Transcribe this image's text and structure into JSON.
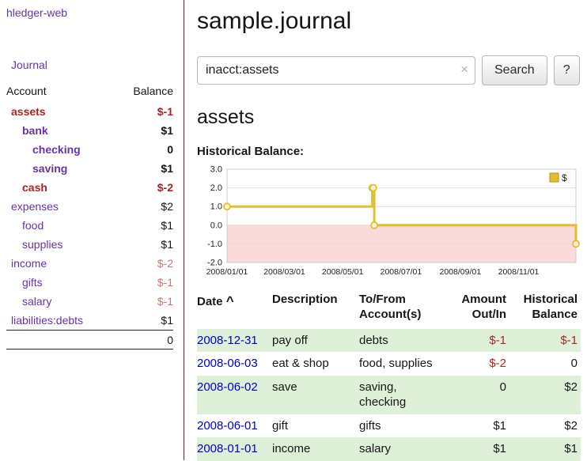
{
  "app": {
    "brand": "hledger-web",
    "nav_journal": "Journal"
  },
  "sidebar": {
    "headers": {
      "account": "Account",
      "balance": "Balance"
    },
    "accounts": [
      {
        "name": "assets",
        "balance": "$-1"
      },
      {
        "name": "bank",
        "balance": "$1"
      },
      {
        "name": "checking",
        "balance": "0"
      },
      {
        "name": "saving",
        "balance": "$1"
      },
      {
        "name": "cash",
        "balance": "$-2"
      },
      {
        "name": "expenses",
        "balance": "$2"
      },
      {
        "name": "food",
        "balance": "$1"
      },
      {
        "name": "supplies",
        "balance": "$1"
      },
      {
        "name": "income",
        "balance": "$-2"
      },
      {
        "name": "gifts",
        "balance": "$-1"
      },
      {
        "name": "salary",
        "balance": "$-1"
      },
      {
        "name": "liabilities:debts",
        "balance": "$1"
      }
    ],
    "total": "0"
  },
  "main": {
    "title": "sample.journal",
    "search": {
      "value": "inacct:assets",
      "clear_icon": "×",
      "button": "Search",
      "help": "?"
    },
    "account_title": "assets",
    "chart_title": "Historical Balance:",
    "chart_data": {
      "type": "line",
      "step": true,
      "title": "Historical Balance:",
      "x_range": [
        "2008-01-01",
        "2008-12-31"
      ],
      "ylim": [
        -2,
        3
      ],
      "yticks": [
        3,
        2,
        1,
        0,
        -1,
        -2
      ],
      "xticks": [
        "2008/01/01",
        "2008/03/01",
        "2008/05/01",
        "2008/07/01",
        "2008/09/01",
        "2008/11/01"
      ],
      "series": [
        {
          "name": "$",
          "points": [
            [
              "2008-01-01",
              1
            ],
            [
              "2008-06-01",
              2
            ],
            [
              "2008-06-02",
              2
            ],
            [
              "2008-06-03",
              0
            ],
            [
              "2008-12-31",
              -1
            ]
          ]
        }
      ],
      "line_color": "#e3bd2d",
      "marker_fill": "#fdf6dd",
      "negative_fill": "#fbdada",
      "grid": true,
      "legend_position": "top-right"
    },
    "register": {
      "headers": {
        "date": "Date",
        "sort_icon": "^",
        "description": "Description",
        "accounts": "To/From Account(s)",
        "amount": "Amount Out/In",
        "balance": "Historical Balance"
      },
      "rows": [
        {
          "date": "2008-12-31",
          "description": "pay off",
          "accounts": "debts",
          "amount": "$-1",
          "balance": "$-1"
        },
        {
          "date": "2008-06-03",
          "description": "eat & shop",
          "accounts": "food, supplies",
          "amount": "$-2",
          "balance": "0"
        },
        {
          "date": "2008-06-02",
          "description": "save",
          "accounts": "saving, checking",
          "amount": "0",
          "balance": "$2"
        },
        {
          "date": "2008-06-01",
          "description": "gift",
          "accounts": "gifts",
          "amount": "$1",
          "balance": "$2"
        },
        {
          "date": "2008-01-01",
          "description": "income",
          "accounts": "salary",
          "amount": "$1",
          "balance": "$1"
        }
      ]
    }
  }
}
